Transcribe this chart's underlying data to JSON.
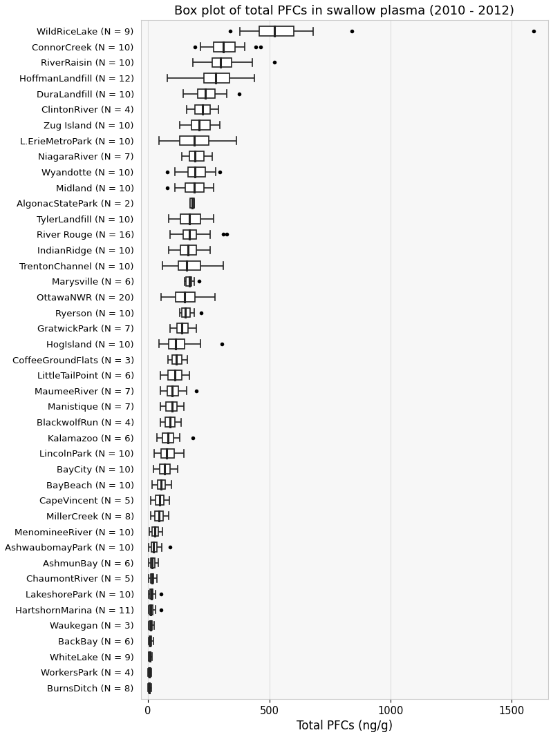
{
  "title": "Box plot of total PFCs in swallow plasma (2010 - 2012)",
  "xlabel": "Total PFCs (ng/g)",
  "xlim": [
    -30,
    1650
  ],
  "xticks": [
    0,
    500,
    1000,
    1500
  ],
  "locations": [
    "WildRiceLake (N = 9)",
    "ConnorCreek (N = 10)",
    "RiverRaisin (N = 10)",
    "HoffmanLandfill (N = 12)",
    "DuraLandfill (N = 10)",
    "ClintonRiver (N = 4)",
    "Zug Island (N = 10)",
    "L.ErieMetroPark (N = 10)",
    "NiagaraRiver (N = 7)",
    "Wyandotte (N = 10)",
    "Midland (N = 10)",
    "AlgonacStatePark (N = 2)",
    "TylerLandfill (N = 10)",
    "River Rouge (N = 16)",
    "IndianRidge (N = 10)",
    "TrentonChannel (N = 10)",
    "Marysville (N = 6)",
    "OttawaNWR (N = 20)",
    "Ryerson (N = 10)",
    "GratwickPark (N = 7)",
    "HogIsland (N = 10)",
    "CoffeeGroundFlats (N = 3)",
    "LittleTailPoint (N = 6)",
    "MaumeeRiver (N = 7)",
    "Manistique (N = 7)",
    "BlackwolfRun (N = 4)",
    "Kalamazoo (N = 6)",
    "LincolnPark (N = 10)",
    "BayCity (N = 10)",
    "BayBeach (N = 10)",
    "CapeVincent (N = 5)",
    "MillerCreek (N = 8)",
    "MenomineeRiver (N = 10)",
    "AshwaubomayPark (N = 10)",
    "AshmunBay (N = 6)",
    "ChaumontRiver (N = 5)",
    "LakeshorePark (N = 10)",
    "HartshornMarina (N = 11)",
    "Waukegan (N = 3)",
    "BackBay (N = 6)",
    "WhiteLake (N = 9)",
    "WorkersPark (N = 4)",
    "BurnsDitch (N = 8)"
  ],
  "box_data": [
    {
      "q1": 460,
      "median": 520,
      "q3": 600,
      "whisker_low": 380,
      "whisker_high": 680,
      "fliers": [
        340,
        840,
        1590
      ]
    },
    {
      "q1": 270,
      "median": 310,
      "q3": 360,
      "whisker_low": 215,
      "whisker_high": 400,
      "fliers": [
        195,
        445,
        465
      ]
    },
    {
      "q1": 265,
      "median": 300,
      "q3": 345,
      "whisker_low": 185,
      "whisker_high": 430,
      "fliers": [
        520
      ]
    },
    {
      "q1": 230,
      "median": 280,
      "q3": 335,
      "whisker_low": 80,
      "whisker_high": 440,
      "fliers": []
    },
    {
      "q1": 205,
      "median": 235,
      "q3": 275,
      "whisker_low": 145,
      "whisker_high": 325,
      "fliers": [
        375
      ]
    },
    {
      "q1": 195,
      "median": 225,
      "q3": 255,
      "whisker_low": 160,
      "whisker_high": 290,
      "fliers": []
    },
    {
      "q1": 180,
      "median": 210,
      "q3": 255,
      "whisker_low": 130,
      "whisker_high": 295,
      "fliers": []
    },
    {
      "q1": 130,
      "median": 190,
      "q3": 250,
      "whisker_low": 45,
      "whisker_high": 365,
      "fliers": []
    },
    {
      "q1": 170,
      "median": 195,
      "q3": 230,
      "whisker_low": 140,
      "whisker_high": 265,
      "fliers": []
    },
    {
      "q1": 165,
      "median": 195,
      "q3": 235,
      "whisker_low": 110,
      "whisker_high": 280,
      "fliers": [
        80,
        295
      ]
    },
    {
      "q1": 155,
      "median": 190,
      "q3": 230,
      "whisker_low": 110,
      "whisker_high": 270,
      "fliers": [
        80
      ]
    },
    {
      "q1": 175,
      "median": 182,
      "q3": 190,
      "whisker_low": 175,
      "whisker_high": 190,
      "fliers": []
    },
    {
      "q1": 135,
      "median": 170,
      "q3": 215,
      "whisker_low": 85,
      "whisker_high": 270,
      "fliers": []
    },
    {
      "q1": 145,
      "median": 170,
      "q3": 200,
      "whisker_low": 90,
      "whisker_high": 255,
      "fliers": [
        310,
        325
      ]
    },
    {
      "q1": 135,
      "median": 165,
      "q3": 200,
      "whisker_low": 85,
      "whisker_high": 255,
      "fliers": []
    },
    {
      "q1": 125,
      "median": 160,
      "q3": 215,
      "whisker_low": 60,
      "whisker_high": 310,
      "fliers": []
    },
    {
      "q1": 157,
      "median": 170,
      "q3": 180,
      "whisker_low": 150,
      "whisker_high": 190,
      "fliers": [
        210
      ]
    },
    {
      "q1": 115,
      "median": 150,
      "q3": 195,
      "whisker_low": 55,
      "whisker_high": 275,
      "fliers": []
    },
    {
      "q1": 140,
      "median": 155,
      "q3": 175,
      "whisker_low": 130,
      "whisker_high": 190,
      "fliers": [
        220
      ]
    },
    {
      "q1": 120,
      "median": 140,
      "q3": 165,
      "whisker_low": 90,
      "whisker_high": 200,
      "fliers": []
    },
    {
      "q1": 85,
      "median": 115,
      "q3": 150,
      "whisker_low": 45,
      "whisker_high": 215,
      "fliers": [
        305
      ]
    },
    {
      "q1": 100,
      "median": 118,
      "q3": 140,
      "whisker_low": 82,
      "whisker_high": 162,
      "fliers": []
    },
    {
      "q1": 82,
      "median": 112,
      "q3": 140,
      "whisker_low": 52,
      "whisker_high": 172,
      "fliers": []
    },
    {
      "q1": 80,
      "median": 100,
      "q3": 125,
      "whisker_low": 52,
      "whisker_high": 158,
      "fliers": [
        200
      ]
    },
    {
      "q1": 75,
      "median": 100,
      "q3": 120,
      "whisker_low": 52,
      "whisker_high": 148,
      "fliers": []
    },
    {
      "q1": 70,
      "median": 90,
      "q3": 112,
      "whisker_low": 50,
      "whisker_high": 136,
      "fliers": []
    },
    {
      "q1": 60,
      "median": 82,
      "q3": 105,
      "whisker_low": 38,
      "whisker_high": 132,
      "fliers": [
        185
      ]
    },
    {
      "q1": 55,
      "median": 78,
      "q3": 108,
      "whisker_low": 25,
      "whisker_high": 148,
      "fliers": []
    },
    {
      "q1": 48,
      "median": 68,
      "q3": 92,
      "whisker_low": 22,
      "whisker_high": 122,
      "fliers": []
    },
    {
      "q1": 40,
      "median": 55,
      "q3": 72,
      "whisker_low": 18,
      "whisker_high": 98,
      "fliers": []
    },
    {
      "q1": 30,
      "median": 48,
      "q3": 65,
      "whisker_low": 12,
      "whisker_high": 88,
      "fliers": []
    },
    {
      "q1": 28,
      "median": 45,
      "q3": 62,
      "whisker_low": 10,
      "whisker_high": 85,
      "fliers": []
    },
    {
      "q1": 18,
      "median": 28,
      "q3": 42,
      "whisker_low": 6,
      "whisker_high": 60,
      "fliers": []
    },
    {
      "q1": 14,
      "median": 22,
      "q3": 36,
      "whisker_low": 4,
      "whisker_high": 56,
      "fliers": [
        90
      ]
    },
    {
      "q1": 10,
      "median": 18,
      "q3": 28,
      "whisker_low": 4,
      "whisker_high": 42,
      "fliers": []
    },
    {
      "q1": 10,
      "median": 16,
      "q3": 24,
      "whisker_low": 4,
      "whisker_high": 38,
      "fliers": []
    },
    {
      "q1": 8,
      "median": 14,
      "q3": 20,
      "whisker_low": 3,
      "whisker_high": 32,
      "fliers": [
        55
      ]
    },
    {
      "q1": 6,
      "median": 12,
      "q3": 20,
      "whisker_low": 3,
      "whisker_high": 30,
      "fliers": [
        55
      ]
    },
    {
      "q1": 6,
      "median": 12,
      "q3": 18,
      "whisker_low": 3,
      "whisker_high": 26,
      "fliers": []
    },
    {
      "q1": 5,
      "median": 9,
      "q3": 15,
      "whisker_low": 2,
      "whisker_high": 24,
      "fliers": []
    },
    {
      "q1": 4,
      "median": 7,
      "q3": 12,
      "whisker_low": 2,
      "whisker_high": 18,
      "fliers": []
    },
    {
      "q1": 3,
      "median": 6,
      "q3": 10,
      "whisker_low": 1,
      "whisker_high": 15,
      "fliers": []
    },
    {
      "q1": 3,
      "median": 5,
      "q3": 9,
      "whisker_low": 1,
      "whisker_high": 14,
      "fliers": []
    }
  ],
  "box_fill": "white",
  "median_color": "#222222",
  "whisker_color": "#222222",
  "flier_color": "black",
  "plot_bg": "#f7f7f7",
  "fig_bg": "white",
  "grid_color": "#dddddd",
  "title_fontsize": 13,
  "xlabel_fontsize": 12,
  "tick_fontsize": 9.5
}
